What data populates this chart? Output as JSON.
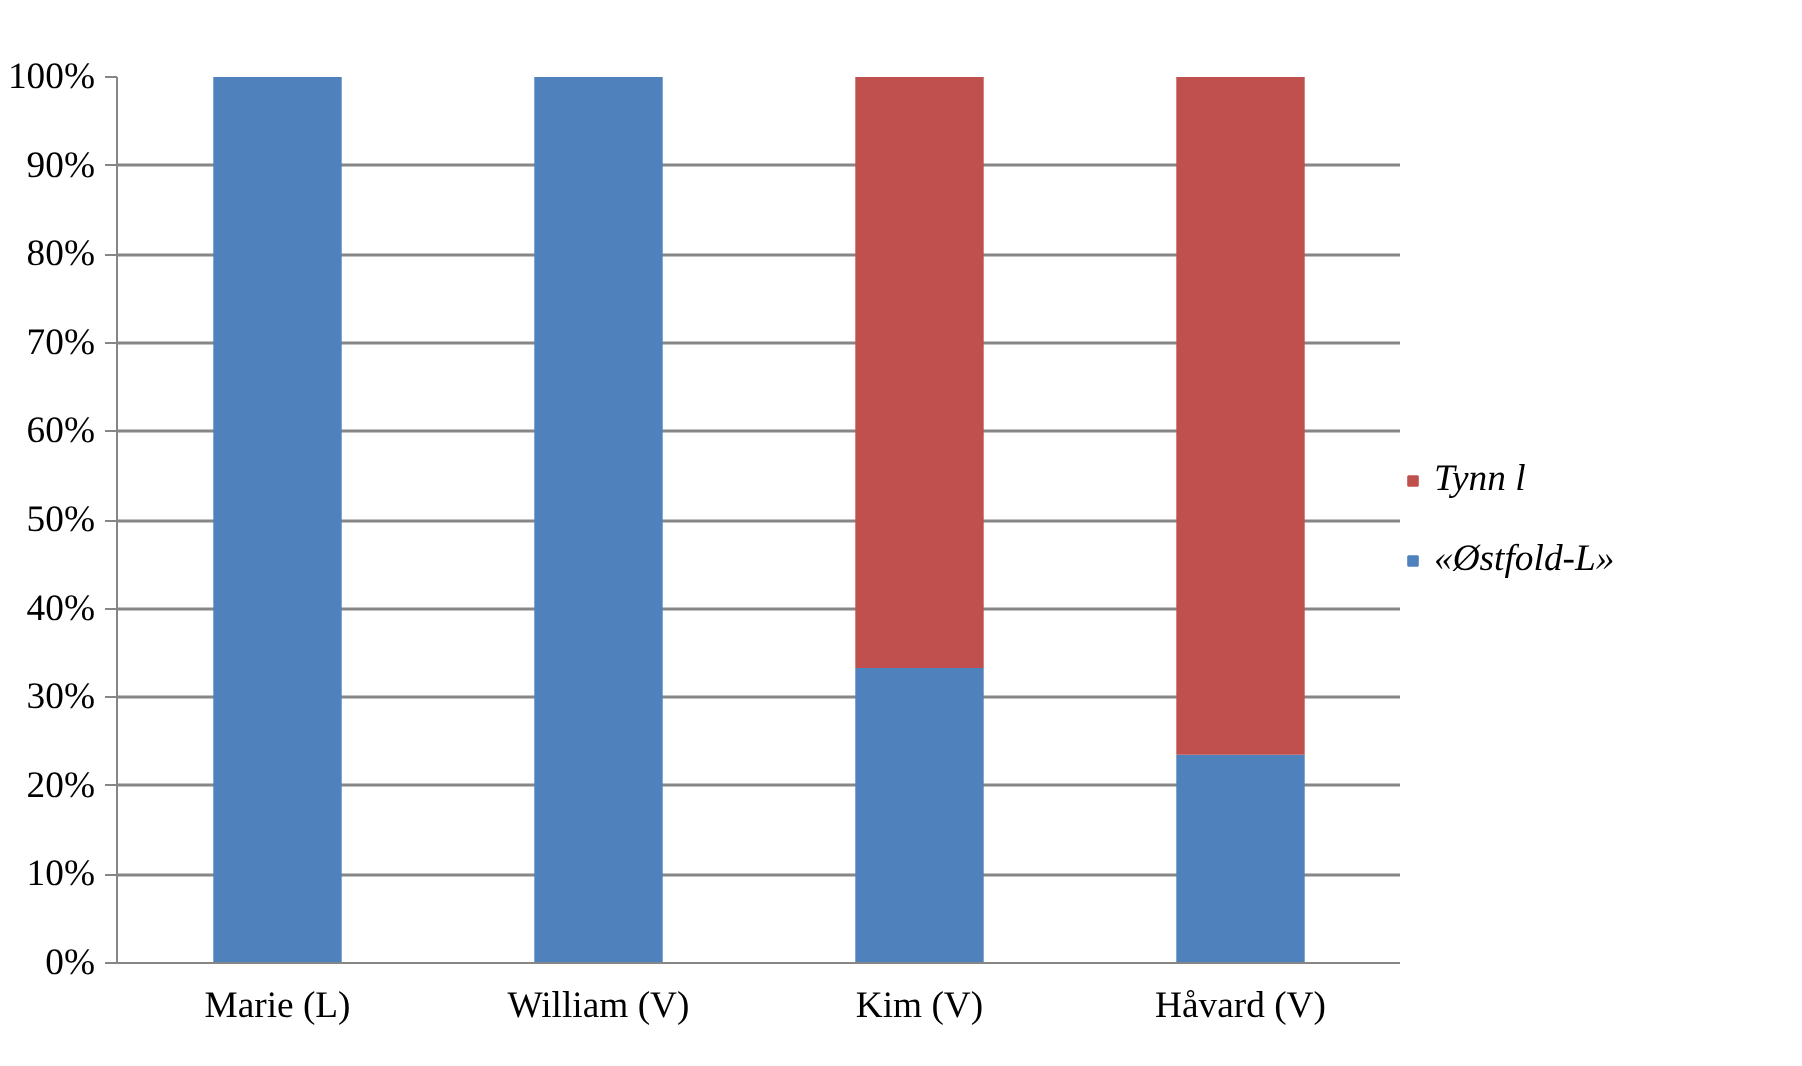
{
  "chart_data": {
    "type": "bar",
    "stacked": true,
    "categories": [
      "Marie (L)",
      "William (V)",
      "Kim (V)",
      "Håvard (V)"
    ],
    "series": [
      {
        "name": "«Østfold-L»",
        "color": "#4f81bd",
        "values": [
          100,
          100,
          33.3,
          23.5
        ]
      },
      {
        "name": "Tynn l",
        "color": "#c0504d",
        "values": [
          0,
          0,
          66.7,
          76.5
        ]
      }
    ],
    "ylim": [
      0,
      100
    ],
    "yticks": [
      {
        "value": 0,
        "label": "0%"
      },
      {
        "value": 10,
        "label": "10%"
      },
      {
        "value": 20,
        "label": "20%"
      },
      {
        "value": 30,
        "label": "30%"
      },
      {
        "value": 40,
        "label": "40%"
      },
      {
        "value": 50,
        "label": "50%"
      },
      {
        "value": 60,
        "label": "60%"
      },
      {
        "value": 70,
        "label": "70%"
      },
      {
        "value": 80,
        "label": "80%"
      },
      {
        "value": 90,
        "label": "90%"
      },
      {
        "value": 100,
        "label": "100%"
      }
    ],
    "grid": "y",
    "legend": "right"
  }
}
